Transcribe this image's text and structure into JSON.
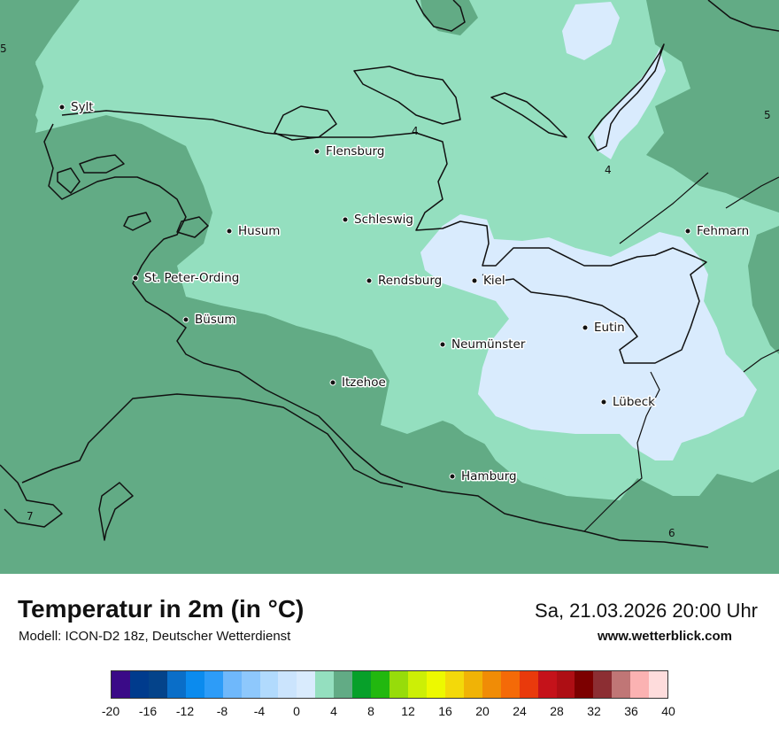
{
  "title": "Temperatur in 2m (in °C)",
  "subtitle": "Modell: ICON-D2 18z, Deutscher Wetterdienst",
  "datetime": "Sa, 21.03.2026 20:00 Uhr",
  "website": "www.wetterblick.com",
  "map": {
    "cities": [
      {
        "name": "Sylt"
      },
      {
        "name": "Flensburg"
      },
      {
        "name": "Schleswig"
      },
      {
        "name": "Husum"
      },
      {
        "name": "Fehmarn"
      },
      {
        "name": "St. Peter-Ording"
      },
      {
        "name": "Rendsburg"
      },
      {
        "name": "Kiel"
      },
      {
        "name": "Büsum"
      },
      {
        "name": "Eutin"
      },
      {
        "name": "Neumünster"
      },
      {
        "name": "Itzehoe"
      },
      {
        "name": "Lübeck"
      },
      {
        "name": "Hamburg"
      }
    ],
    "isoline_labels": [
      "5",
      "4",
      "5",
      "4",
      "7",
      "6"
    ],
    "colors": {
      "t_2_4": "#d9ebfd",
      "t_4_6": "#94dfbf",
      "t_6_8": "#62ab85",
      "t_8_10": "#07a02a"
    }
  },
  "legend": {
    "colors": [
      "#3a0a87",
      "#003b8d",
      "#04438a",
      "#0a6ec8",
      "#0b8bee",
      "#2d9cf8",
      "#6fb8fb",
      "#8ec8fc",
      "#b1dafd",
      "#cbe4fd",
      "#d9ebfd",
      "#94dfbf",
      "#62ab85",
      "#07a02a",
      "#22b80f",
      "#97dc0a",
      "#ccef06",
      "#edf900",
      "#f3d90a",
      "#f0b306",
      "#f08c06",
      "#f46a08",
      "#e93a0c",
      "#c5121a",
      "#ae0e14",
      "#7c0000",
      "#8c2e33",
      "#c07676",
      "#fbb2b2",
      "#fedcdc"
    ],
    "ticks": [
      "-20",
      "-16",
      "-12",
      "-8",
      "-4",
      "0",
      "4",
      "8",
      "12",
      "16",
      "20",
      "24",
      "28",
      "32",
      "36",
      "40"
    ],
    "min": -20,
    "max": 40
  }
}
